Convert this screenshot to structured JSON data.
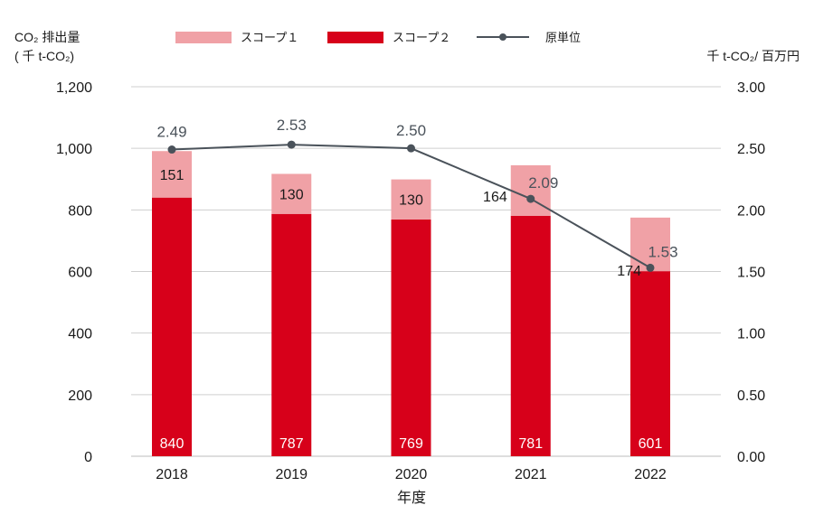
{
  "chart_data": {
    "type": "bar",
    "stacked": true,
    "categories": [
      "2018",
      "2019",
      "2020",
      "2021",
      "2022"
    ],
    "series": [
      {
        "name": "スコープ２",
        "kind": "bar",
        "axis": "left",
        "color": "#d7001a",
        "values": [
          840,
          787,
          769,
          781,
          601
        ]
      },
      {
        "name": "スコープ１",
        "kind": "bar",
        "axis": "left",
        "color": "#f0a1a6",
        "values": [
          151,
          130,
          130,
          164,
          174
        ]
      },
      {
        "name": "原単位",
        "kind": "line",
        "axis": "right",
        "color": "#4a525a",
        "values": [
          2.49,
          2.53,
          2.5,
          2.09,
          1.53
        ]
      }
    ],
    "legend_order": [
      "スコープ１",
      "スコープ２",
      "原単位"
    ],
    "legend_position": "top",
    "xlabel": "年度",
    "ylabel_left_line1": "CO₂ 排出量",
    "ylabel_left_line2": "( 千 t-CO₂)",
    "ylabel_right": "千 t-CO₂/ 百万円",
    "ylim_left": [
      0,
      1200
    ],
    "yticks_left": [
      "0",
      "200",
      "400",
      "600",
      "800",
      "1,000",
      "1,200"
    ],
    "ylim_right": [
      0,
      3
    ],
    "yticks_right": [
      "0.00",
      "0.50",
      "1.00",
      "1.50",
      "2.00",
      "2.50",
      "3.00"
    ],
    "line_labels": [
      "2.49",
      "2.53",
      "2.50",
      "2.09",
      "1.53"
    ],
    "scope1_labels": [
      "151",
      "130",
      "130",
      "164",
      "174"
    ],
    "scope2_labels": [
      "840",
      "787",
      "769",
      "781",
      "601"
    ],
    "grid": true,
    "grid_color": "#cfcfcf"
  }
}
